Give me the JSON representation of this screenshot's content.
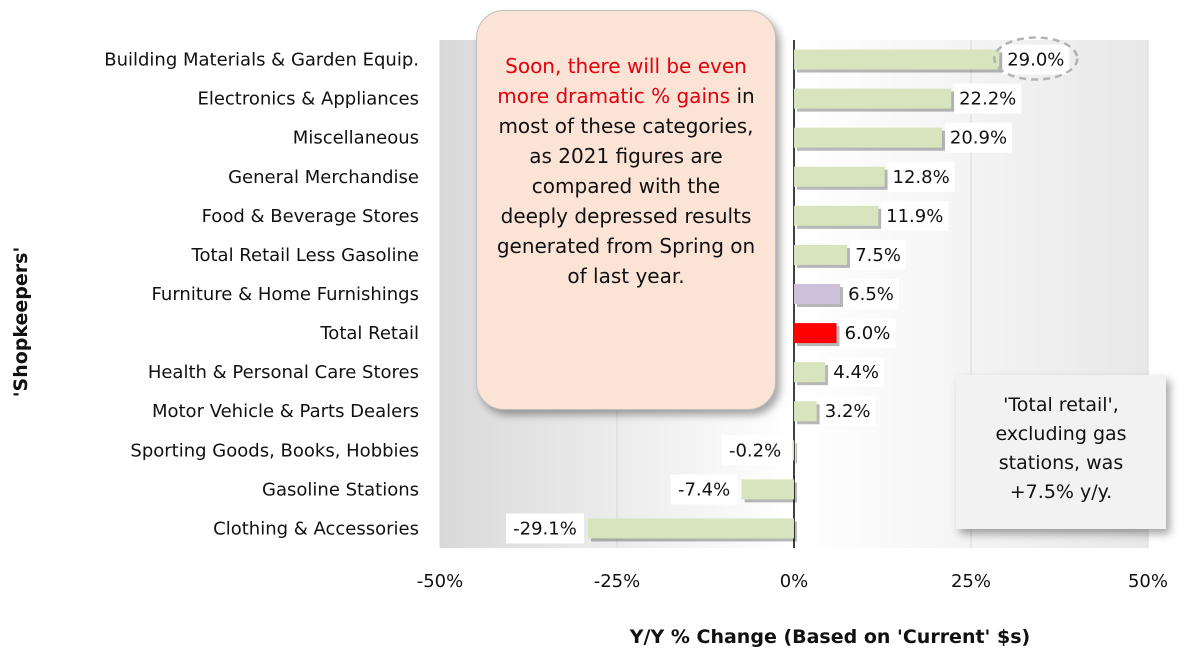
{
  "chart_data": {
    "type": "bar",
    "orientation": "horizontal",
    "title": "",
    "xlabel": "Y/Y % Change (Based  on 'Current' $s)",
    "ylabel": "'Shopkeepers'",
    "xlim": [
      -50,
      50
    ],
    "xticks": [
      -50,
      -25,
      0,
      25,
      50
    ],
    "xtick_labels": [
      "-50%",
      "-25%",
      "0%",
      "25%",
      "50%"
    ],
    "categories": [
      "Building Materials & Garden Equip.",
      "Electronics & Appliances",
      "Miscellaneous",
      "General Merchandise",
      "Food & Beverage Stores",
      "Total Retail Less Gasoline",
      "Furniture & Home Furnishings",
      "Total Retail",
      "Health & Personal Care Stores",
      "Motor Vehicle & Parts Dealers",
      "Sporting Goods, Books, Hobbies",
      "Gasoline Stations",
      "Clothing & Accessories"
    ],
    "values": [
      29.0,
      22.2,
      20.9,
      12.8,
      11.9,
      7.5,
      6.5,
      6.0,
      4.4,
      3.2,
      -0.2,
      -7.4,
      -29.1
    ],
    "value_labels": [
      "29.0%",
      "22.2%",
      "20.9%",
      "12.8%",
      "11.9%",
      "7.5%",
      "6.5%",
      "6.0%",
      "4.4%",
      "3.2%",
      "-0.2%",
      "-7.4%",
      "-29.1%"
    ],
    "bar_colors": [
      "#d7e4bd",
      "#d7e4bd",
      "#d7e4bd",
      "#d7e4bd",
      "#d7e4bd",
      "#d7e4bd",
      "#ccc0da",
      "#ff0000",
      "#d7e4bd",
      "#d7e4bd",
      "#d7e4bd",
      "#d7e4bd",
      "#d7e4bd"
    ],
    "highlighted_value_index": 0
  },
  "callout": {
    "highlight_text": "Soon, there will be even more dramatic % gains",
    "rest_text": " in most of these categories, as 2021 figures are compared with the deeply depressed results generated from Spring on of last year."
  },
  "note": {
    "text": "'Total retail', excluding gas stations, was +7.5% y/y."
  },
  "colors": {
    "callout_bg": "#fbe3d6",
    "callout_highlight": "#e3000f",
    "note_bg": "#f2f2f2",
    "grid": "#d9d9d9"
  }
}
